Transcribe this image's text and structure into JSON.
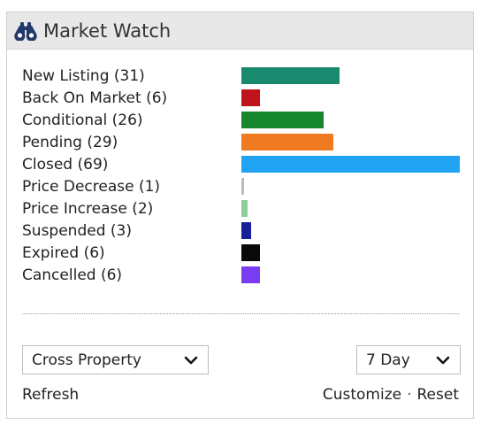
{
  "header": {
    "title": "Market Watch",
    "icon": "binoculars-icon"
  },
  "stats": [
    {
      "label": "New Listing (31)",
      "count": 31,
      "color": "#1a8a6e",
      "key": "new-listing"
    },
    {
      "label": "Back On Market (6)",
      "count": 6,
      "color": "#c0141c",
      "key": "back-on-market"
    },
    {
      "label": "Conditional (26)",
      "count": 26,
      "color": "#17872e",
      "key": "conditional"
    },
    {
      "label": "Pending (29)",
      "count": 29,
      "color": "#f07a22",
      "key": "pending"
    },
    {
      "label": "Closed (69)",
      "count": 69,
      "color": "#1fa3f2",
      "key": "closed"
    },
    {
      "label": "Price Decrease (1)",
      "count": 1,
      "color": "#b8bcc0",
      "key": "price-decrease"
    },
    {
      "label": "Price Increase (2)",
      "count": 2,
      "color": "#8ccf9c",
      "key": "price-increase"
    },
    {
      "label": "Suspended (3)",
      "count": 3,
      "color": "#1a1f9a",
      "key": "suspended"
    },
    {
      "label": "Expired (6)",
      "count": 6,
      "color": "#0a0a0a",
      "key": "expired"
    },
    {
      "label": "Cancelled (6)",
      "count": 6,
      "color": "#7a3cf2",
      "key": "cancelled"
    }
  ],
  "controls": {
    "property_select": "Cross Property",
    "range_select": "7 Day"
  },
  "links": {
    "refresh": "Refresh",
    "customize": "Customize",
    "separator": "·",
    "reset": "Reset"
  }
}
